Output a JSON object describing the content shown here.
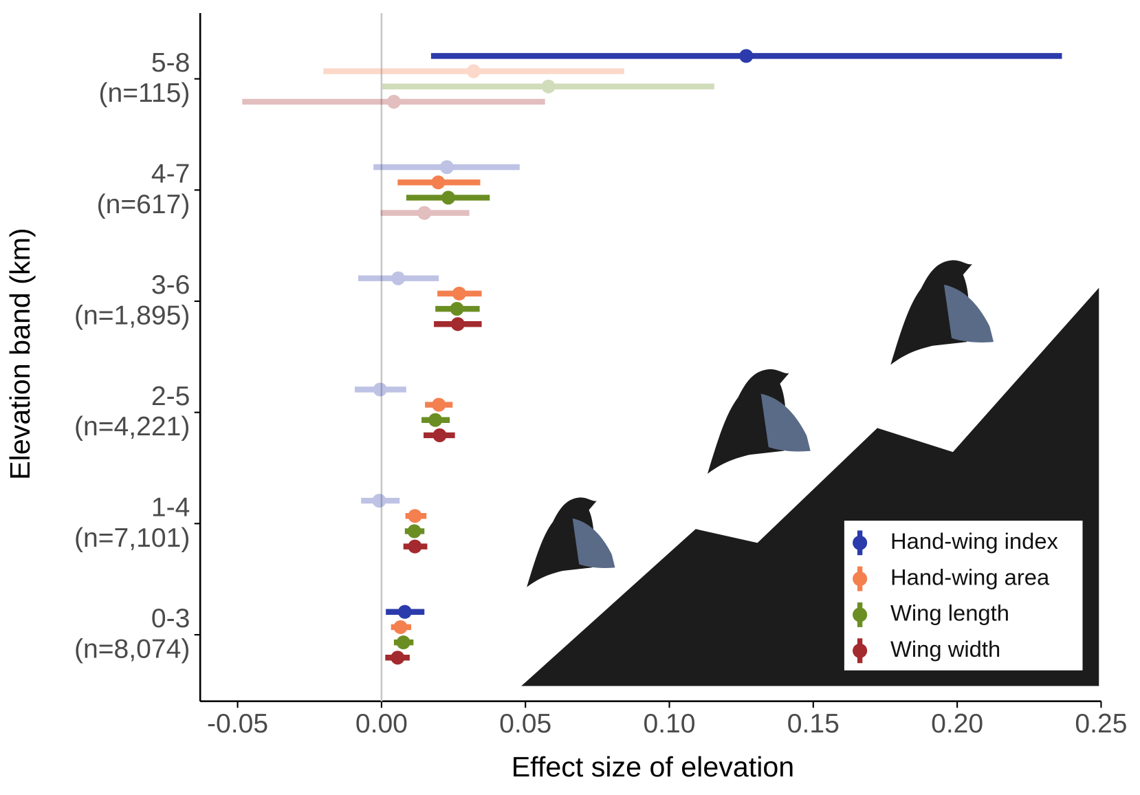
{
  "chart_data": {
    "type": "forest",
    "xlabel": "Effect size of elevation",
    "ylabel": "Elevation band (km)",
    "categories": [
      "5-8",
      "4-7",
      "3-6",
      "2-5",
      "1-4",
      "0-3"
    ],
    "sample_sizes": [
      "(n=115)",
      "(n=617)",
      "(n=1,895)",
      "(n=4,221)",
      "(n=7,101)",
      "(n=8,074)"
    ],
    "xlim": [
      -0.063,
      0.25
    ],
    "xticks": [
      -0.05,
      {
        "value": 0,
        "label": "0.00"
      },
      0.05,
      {
        "value": 0.1,
        "label": "0.10"
      },
      0.15,
      {
        "value": 0.2,
        "label": "0.20"
      },
      0.25
    ],
    "zero_line": true,
    "legend": "lower right",
    "series": [
      {
        "name": "Hand-wing index",
        "color": "#2b3bab",
        "values": [
          0.1267,
          0.0227,
          0.0058,
          -0.0005,
          -0.0008,
          0.0081
        ],
        "low": [
          0.0172,
          -0.0028,
          -0.0081,
          -0.0093,
          -0.0071,
          0.0015
        ],
        "high": [
          0.2364,
          0.048,
          0.0199,
          0.0086,
          0.0063,
          0.0149
        ],
        "significant": [
          true,
          false,
          false,
          false,
          false,
          true
        ]
      },
      {
        "name": "Hand-wing area",
        "color": "#f4804f",
        "values": [
          0.032,
          0.0197,
          0.027,
          0.0199,
          0.0116,
          0.0066
        ],
        "low": [
          -0.0202,
          0.0056,
          0.0194,
          0.0151,
          0.0083,
          0.0033
        ],
        "high": [
          0.0843,
          0.0343,
          0.0348,
          0.0247,
          0.0156,
          0.0103
        ],
        "significant": [
          false,
          true,
          true,
          true,
          true,
          true
        ]
      },
      {
        "name": "Wing length",
        "color": "#6b8e23",
        "values": [
          0.058,
          0.0232,
          0.0262,
          0.0187,
          0.0114,
          0.0076
        ],
        "low": [
          0.0003,
          0.0086,
          0.0187,
          0.0139,
          0.0081,
          0.0043
        ],
        "high": [
          0.1156,
          0.0376,
          0.0341,
          0.0237,
          0.0149,
          0.0111
        ],
        "significant": [
          false,
          true,
          true,
          true,
          true,
          true
        ]
      },
      {
        "name": "Wing width",
        "color": "#a32a2e",
        "values": [
          0.0043,
          0.0149,
          0.0265,
          0.0202,
          0.0116,
          0.0056
        ],
        "low": [
          -0.0484,
          -0.0003,
          0.0182,
          0.0146,
          0.0076,
          0.0013
        ],
        "high": [
          0.0568,
          0.0305,
          0.0348,
          0.0255,
          0.0159,
          0.0098
        ],
        "significant": [
          false,
          false,
          true,
          true,
          true,
          true
        ]
      }
    ]
  }
}
